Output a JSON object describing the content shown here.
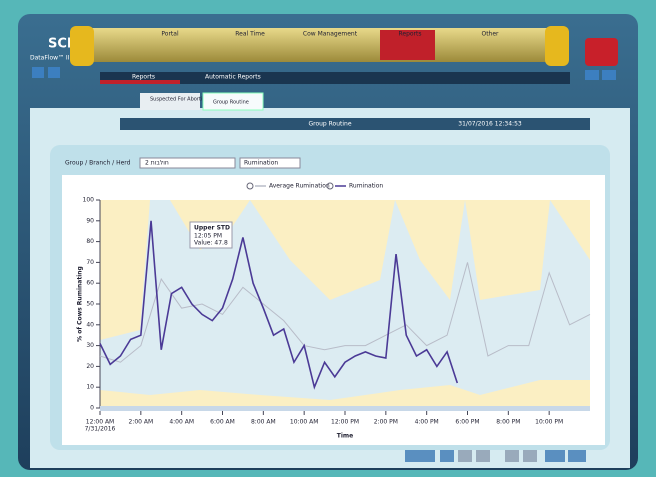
{
  "app": {
    "logo": "SCR",
    "product": "DataFlow™ II"
  },
  "nav": [
    "Portal",
    "Real Time",
    "Cow Management",
    "Reports",
    "Other"
  ],
  "subnav": [
    "Reports",
    "Automatic Reports"
  ],
  "tabs": [
    "Suspected For Abortion",
    "Group Routine"
  ],
  "header": {
    "title": "Group Routine",
    "datetime": "31/07/2016 12:34:53"
  },
  "filters": {
    "label": "Group / Branch / Herd",
    "group": "2 חולבות",
    "metric": "Rumination"
  },
  "tooltip": {
    "title": "Upper STD",
    "time": "12:05 PM",
    "value": "Value: 47.8"
  },
  "chart_data": {
    "type": "line",
    "ylabel": "% of Cows Ruminating",
    "xlabel": "Time",
    "x_date": "7/31/2016",
    "xlim": [
      0,
      24
    ],
    "xticks": [
      {
        "value": 0,
        "label": "12:00 AM"
      },
      {
        "value": 2,
        "label": "2:00 AM"
      },
      {
        "value": 4,
        "label": "4:00 AM"
      },
      {
        "value": 6,
        "label": "6:00 AM"
      },
      {
        "value": 8,
        "label": "8:00 AM"
      },
      {
        "value": 10,
        "label": "10:00 AM"
      },
      {
        "value": 12,
        "label": "12:00 PM"
      },
      {
        "value": 14,
        "label": "2:00 PM"
      },
      {
        "value": 16,
        "label": "4:00 PM"
      },
      {
        "value": 18,
        "label": "6:00 PM"
      },
      {
        "value": 20,
        "label": "8:00 PM"
      },
      {
        "value": 22,
        "label": "10:00 PM"
      }
    ],
    "ylim": [
      0,
      100
    ],
    "yticks": [
      0,
      10,
      20,
      30,
      40,
      50,
      60,
      70,
      80,
      90,
      100
    ],
    "series": [
      {
        "name": "Average Rumination",
        "color": "#b8bcc8",
        "x": [
          0,
          1,
          2,
          3,
          4,
          5,
          6,
          7,
          8,
          9,
          10,
          11,
          12,
          13,
          14,
          15,
          16,
          17,
          18,
          19,
          20,
          21,
          22,
          23,
          24
        ],
        "values": [
          25,
          22,
          30,
          62,
          48,
          50,
          45,
          58,
          50,
          42,
          30,
          28,
          30,
          30,
          35,
          40,
          30,
          35,
          70,
          25,
          30,
          30,
          65,
          40,
          45
        ]
      },
      {
        "name": "Rumination",
        "color": "#4b3a96",
        "x": [
          0,
          0.5,
          1,
          1.5,
          2,
          2.5,
          3,
          3.5,
          4,
          4.5,
          5,
          5.5,
          6,
          6.5,
          7,
          7.5,
          8,
          8.5,
          9,
          9.5,
          10,
          10.5,
          11,
          11.5,
          12,
          12.5,
          13,
          13.5,
          14,
          14.5,
          15,
          15.5,
          16,
          16.5,
          17,
          17.5
        ],
        "values": [
          31,
          21,
          25,
          33,
          35,
          90,
          28,
          55,
          58,
          50,
          45,
          42,
          48,
          62,
          82,
          60,
          48,
          35,
          38,
          22,
          30,
          10,
          22,
          15,
          22,
          25,
          27,
          25,
          24,
          74,
          35,
          25,
          28,
          20,
          27,
          12
        ]
      }
    ]
  }
}
